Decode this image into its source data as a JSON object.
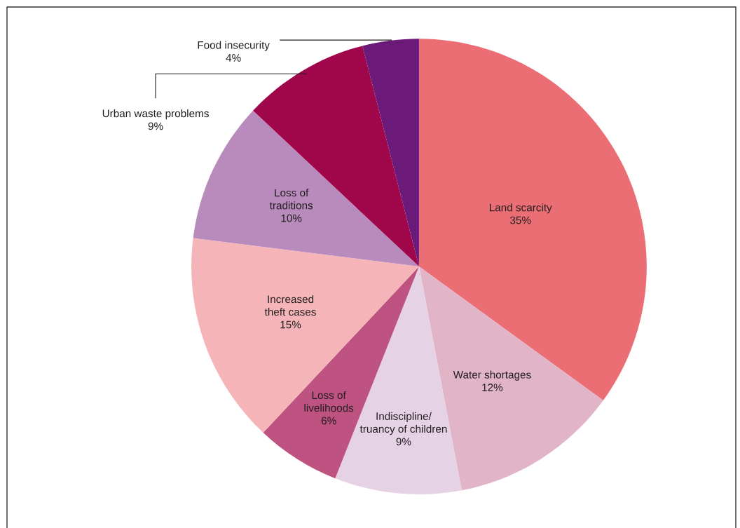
{
  "chart_data": {
    "type": "pie",
    "categories": [
      "Land scarcity",
      "Water shortages",
      "Indiscipline/\ntruancy of children",
      "Loss of\nlivelihoods",
      "Increased\ntheft cases",
      "Loss of\ntraditions",
      "Urban waste problems",
      "Food insecurity"
    ],
    "values": [
      35,
      12,
      9,
      6,
      15,
      10,
      9,
      4
    ],
    "colors": [
      "#ec6e75",
      "#e2b4c8",
      "#e5d3e5",
      "#be5281",
      "#f5b5b8",
      "#b98bbd",
      "#a0064a",
      "#6c1a7a"
    ],
    "value_labels": [
      "35%",
      "12%",
      "9%",
      "6%",
      "15%",
      "10%",
      "9%",
      "4%"
    ],
    "legend": false
  }
}
